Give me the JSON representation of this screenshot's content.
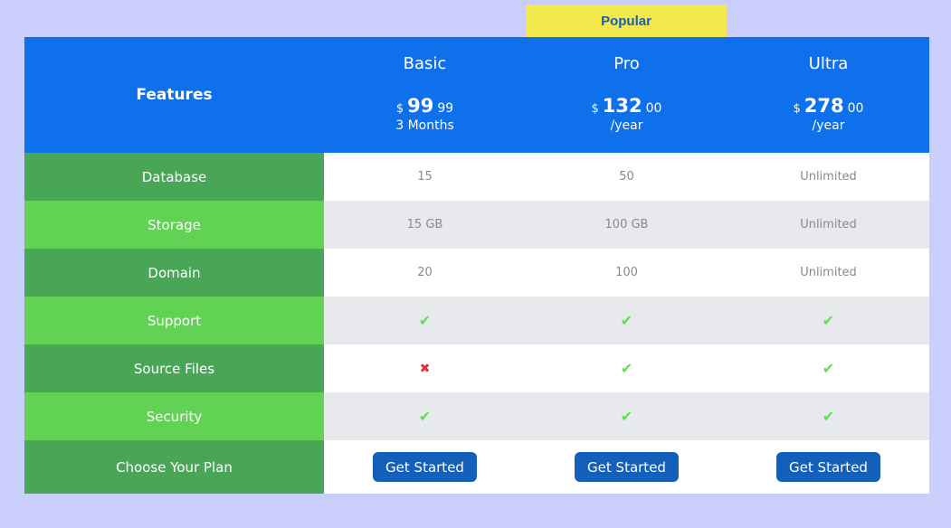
{
  "popular_label": "Popular",
  "header": {
    "features": "Features"
  },
  "plans": [
    {
      "name": "Basic",
      "currency": "$",
      "price_main": "99",
      "price_cents": "99",
      "period": "3 Months",
      "button": "Get Started"
    },
    {
      "name": "Pro",
      "currency": "$",
      "price_main": "132",
      "price_cents": "00",
      "period": "/year",
      "button": "Get Started"
    },
    {
      "name": "Ultra",
      "currency": "$",
      "price_main": "278",
      "price_cents": "00",
      "period": "/year",
      "button": "Get Started"
    }
  ],
  "rows": [
    {
      "feature": "Database",
      "values": [
        "15",
        "50",
        "Unlimited"
      ]
    },
    {
      "feature": "Storage",
      "values": [
        "15 GB",
        "100 GB",
        "Unlimited"
      ]
    },
    {
      "feature": "Domain",
      "values": [
        "20",
        "100",
        "Unlimited"
      ]
    },
    {
      "feature": "Support",
      "values": [
        "check",
        "check",
        "check"
      ]
    },
    {
      "feature": "Source Files",
      "values": [
        "cross",
        "check",
        "check"
      ]
    },
    {
      "feature": "Security",
      "values": [
        "check",
        "check",
        "check"
      ]
    }
  ],
  "choose_label": "Choose Your Plan",
  "colors": {
    "header": "#0f70eb",
    "badge": "#f2e84d",
    "feature_dark": "#4aa657",
    "feature_light": "#62d255",
    "button": "#135fb9",
    "check": "#5fe050",
    "cross": "#e53030"
  }
}
